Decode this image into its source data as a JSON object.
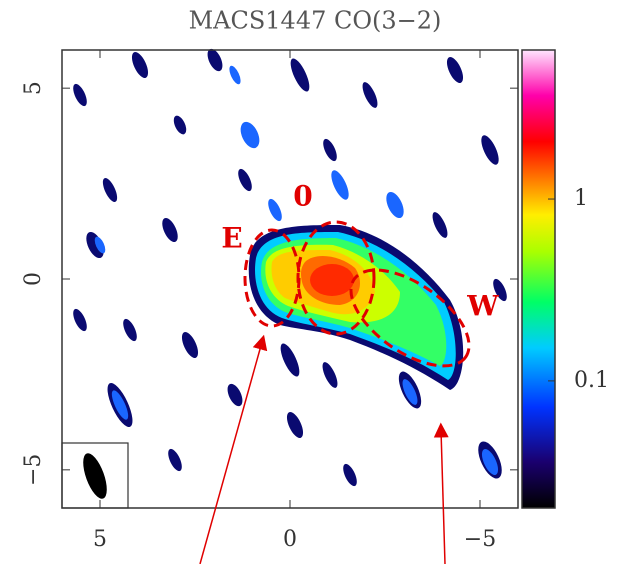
{
  "title": "MACS1447 CO(3−2)",
  "x_axis": {
    "lim": [
      6,
      -6
    ],
    "ticks": [
      5,
      0,
      {
        "value": -5,
        "label": "−5"
      }
    ]
  },
  "y_axis": {
    "lim": [
      -6,
      6
    ],
    "ticks": [
      {
        "value": -5,
        "label": "−5"
      },
      0,
      5
    ]
  },
  "colorbar": {
    "scale": "log",
    "lim": [
      0.02,
      6.6
    ],
    "ticks": [
      0.1,
      1
    ]
  },
  "regions": [
    "E",
    "0",
    "W"
  ]
}
